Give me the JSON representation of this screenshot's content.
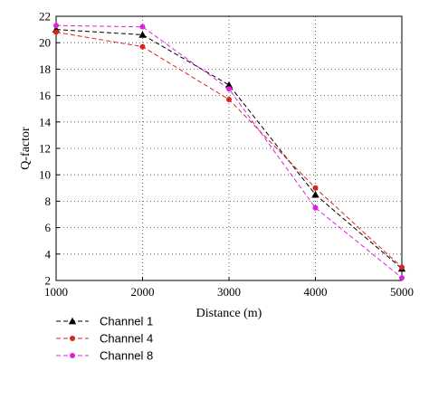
{
  "chart_data": {
    "type": "line",
    "title": "",
    "xlabel": "Distance (m)",
    "ylabel": "Q-factor",
    "x": [
      1000,
      2000,
      3000,
      4000,
      5000
    ],
    "xticks": [
      1000,
      2000,
      3000,
      4000,
      5000
    ],
    "xlim": [
      1000,
      5000
    ],
    "ylim": [
      2,
      22
    ],
    "yticks": [
      2,
      4,
      6,
      8,
      10,
      12,
      14,
      16,
      18,
      20,
      22
    ],
    "grid": true,
    "legend_position": "bottom-left, below plot",
    "series": [
      {
        "name": "Channel 1",
        "values": [
          21.0,
          20.6,
          16.8,
          8.5,
          2.9
        ],
        "color": "#000000",
        "marker": "triangle"
      },
      {
        "name": "Channel 4",
        "values": [
          20.8,
          19.7,
          15.7,
          9.0,
          3.0
        ],
        "color": "#d9261c",
        "marker": "circle"
      },
      {
        "name": "Channel 8",
        "values": [
          21.3,
          21.2,
          16.5,
          7.5,
          2.2
        ],
        "color": "#e020e0",
        "marker": "circle"
      }
    ]
  }
}
